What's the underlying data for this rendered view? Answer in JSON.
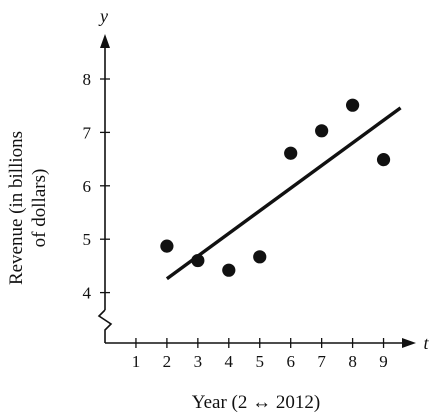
{
  "chart_data": {
    "type": "scatter",
    "title": "",
    "xlabel": "Year (2 ↔ 2012)",
    "ylabel_line1": "Revenue (in billions",
    "ylabel_line2": "of dollars)",
    "x_axis_var": "t",
    "y_axis_var": "y",
    "xlim": [
      0,
      10
    ],
    "ylim": [
      3,
      8.5
    ],
    "y_axis_break": true,
    "grid": false,
    "x_ticks": [
      1,
      2,
      3,
      4,
      5,
      6,
      7,
      8,
      9
    ],
    "y_ticks": [
      4,
      5,
      6,
      7,
      8
    ],
    "points": [
      {
        "x": 2,
        "y": 4.87
      },
      {
        "x": 3,
        "y": 4.6
      },
      {
        "x": 4,
        "y": 4.42
      },
      {
        "x": 5,
        "y": 4.67
      },
      {
        "x": 6,
        "y": 6.61
      },
      {
        "x": 7,
        "y": 7.03
      },
      {
        "x": 8,
        "y": 7.51
      },
      {
        "x": 9,
        "y": 6.49
      }
    ],
    "trend_line": {
      "x": [
        2,
        9.55
      ],
      "y": [
        4.26,
        7.46
      ]
    },
    "colors": {
      "ink": "#111111",
      "background": "#ffffff"
    }
  }
}
